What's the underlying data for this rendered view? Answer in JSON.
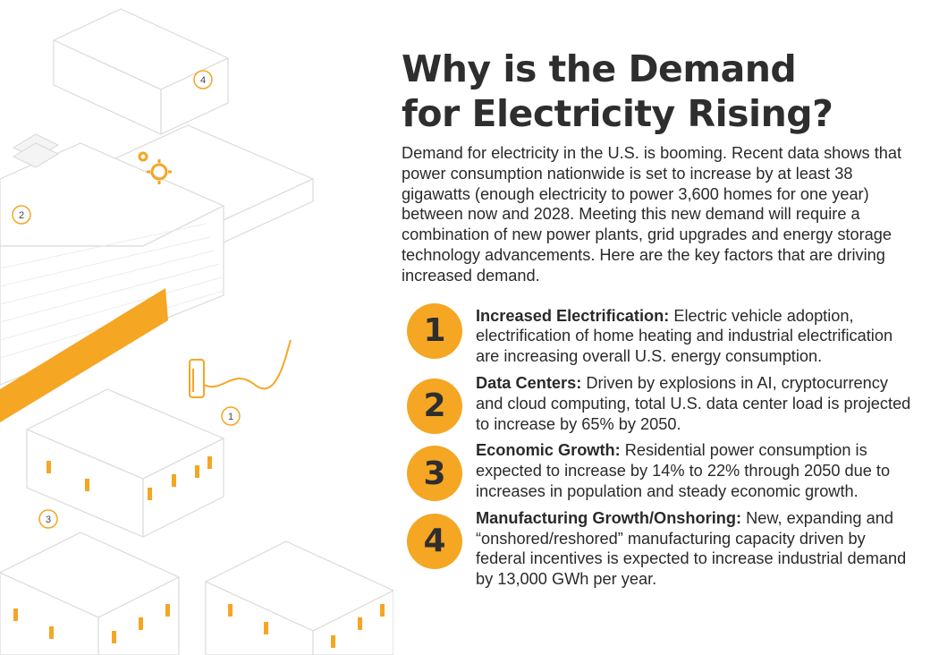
{
  "title_line1": "Why is the Demand",
  "title_line2": "for Electricity Rising?",
  "intro": "Demand for electricity in the U.S. is booming. Recent data shows that power consumption nationwide is set to increase by at least 38 gigawatts (enough electricity to power 3,600 homes for one year) between now and 2028. Meeting this new demand will require a combination of new power plants, grid upgrades and energy storage technology advancements. Here are the key factors that are driving increased demand.",
  "factors": [
    {
      "number": "1",
      "lead": "Increased Electrification:",
      "text": "Electric vehicle adoption, electrification of home heating and industrial electrification are increasing overall U.S. energy consumption."
    },
    {
      "number": "2",
      "lead": "Data Centers:",
      "text": "Driven by explosions in AI, cryptocurrency and cloud computing, total U.S. data center load is projected to increase by 65% by 2050."
    },
    {
      "number": "3",
      "lead": "Economic Growth:",
      "text": "Residential power consumption is expected to increase by 14% to 22% through 2050 due to increases in population and steady economic growth."
    },
    {
      "number": "4",
      "lead": "Manufacturing Growth/Onshoring:",
      "text": "New, expanding and “onshored/reshored” manufacturing capacity driven by federal incentives is expected to increase industrial demand by 13,000 GWh per year."
    }
  ],
  "illustration_markers": [
    "1",
    "2",
    "3",
    "4"
  ],
  "colors": {
    "accent": "#f5a623",
    "text": "#2a2a2a",
    "line": "#d5d5d5"
  }
}
